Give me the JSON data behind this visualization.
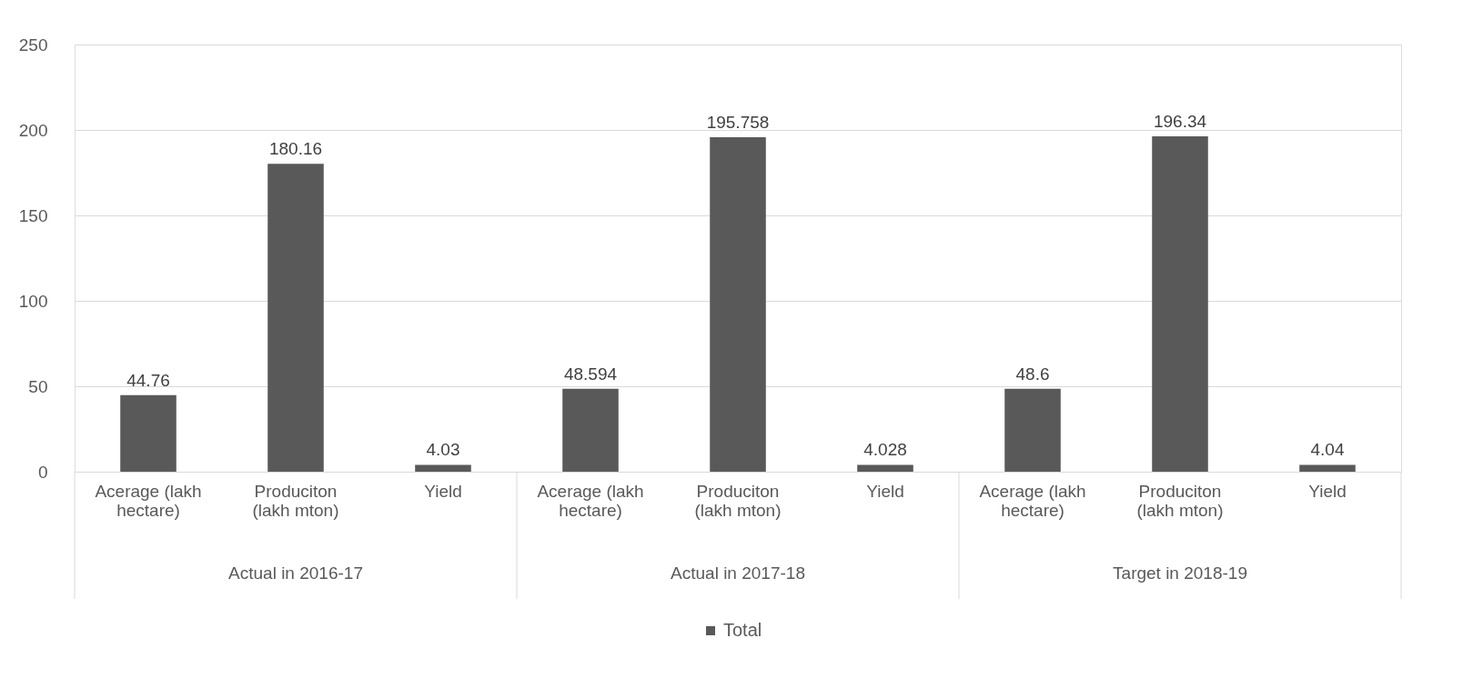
{
  "chart_data": {
    "type": "bar",
    "categories": [
      "Acerage (lakh hectare)",
      "Produciton (lakh  mton)",
      "Yield",
      "Acerage (lakh hectare)",
      "Produciton (lakh  mton)",
      "Yield",
      "Acerage (lakh hectare)",
      "Produciton (lakh  mton)",
      "Yield"
    ],
    "series": [
      {
        "name": "Total",
        "color": "#595959",
        "values": [
          44.76,
          180.16,
          4.03,
          48.594,
          195.758,
          4.028,
          48.6,
          196.34,
          4.04
        ]
      }
    ],
    "annotations": [
      "Actual in 2016-17",
      "Actual in 2017-18",
      "Target in 2018-19"
    ],
    "ylim": [
      0,
      250
    ],
    "yticks": [
      0,
      50,
      100,
      150,
      200,
      250
    ],
    "grid": "y",
    "legend": "bottom",
    "data_labels": true
  }
}
